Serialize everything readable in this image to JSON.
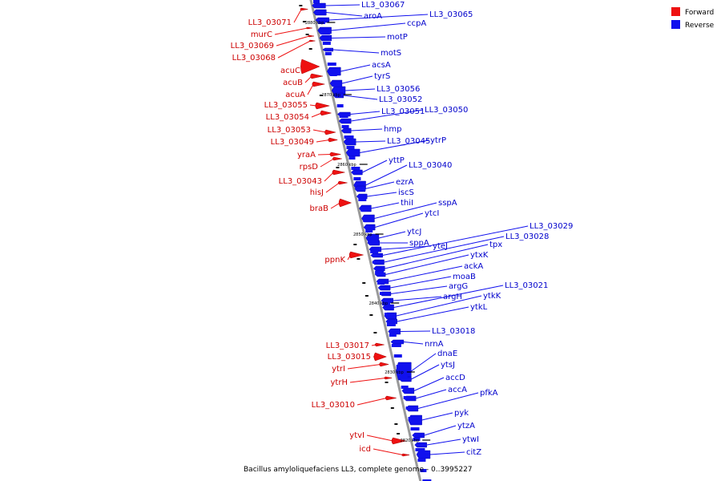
{
  "colors": {
    "forward": "#ee1111",
    "reverse": "#1111ee",
    "backbone": "#999999",
    "small_marker": "#111111"
  },
  "legend": [
    {
      "label": "Forward",
      "color": "#ee1111"
    },
    {
      "label": "Reverse",
      "color": "#1111ee"
    }
  ],
  "caption": "Bacillus amyloliquefaciens LL3, complete genome - 0..3995227",
  "ticks": [
    "2880 kbp",
    "2870 kbp",
    "2860 kbp",
    "2850 kbp",
    "2840 kbp",
    "2830 kbp",
    "2820 kbp"
  ],
  "forward_genes": [
    "LL3_03071",
    "murC",
    "LL3_03069",
    "LL3_03068",
    "acuC",
    "acuB",
    "acuA",
    "LL3_03055",
    "LL3_03054",
    "LL3_03053",
    "LL3_03049",
    "yraA",
    "rpsD",
    "LL3_03043",
    "hisJ",
    "braB",
    "ppnK",
    "LL3_03017",
    "LL3_03015",
    "ytrI",
    "ytrH",
    "LL3_03010",
    "ytvI",
    "icd"
  ],
  "reverse_genes": [
    "LL3_03067",
    "aroA",
    "LL3_03065",
    "ccpA",
    "motP",
    "motS",
    "acsA",
    "tyrS",
    "LL3_03056",
    "LL3_03052",
    "LL3_03051",
    "LL3_03050",
    "hmp",
    "LL3_03045",
    "ytrP",
    "yttP",
    "LL3_03040",
    "ezrA",
    "iscS",
    "thiI",
    "sspA",
    "ytcI",
    "ytcJ",
    "sppA",
    "yteJ",
    "LL3_03029",
    "LL3_03028",
    "tpx",
    "ytxK",
    "ackA",
    "moaB",
    "argG",
    "argH",
    "LL3_03021",
    "ytkK",
    "ytkL",
    "LL3_03018",
    "nrnA",
    "dnaE",
    "ytsJ",
    "accD",
    "accA",
    "pfkA",
    "pyk",
    "ytzA",
    "ytwI",
    "citZ"
  ]
}
